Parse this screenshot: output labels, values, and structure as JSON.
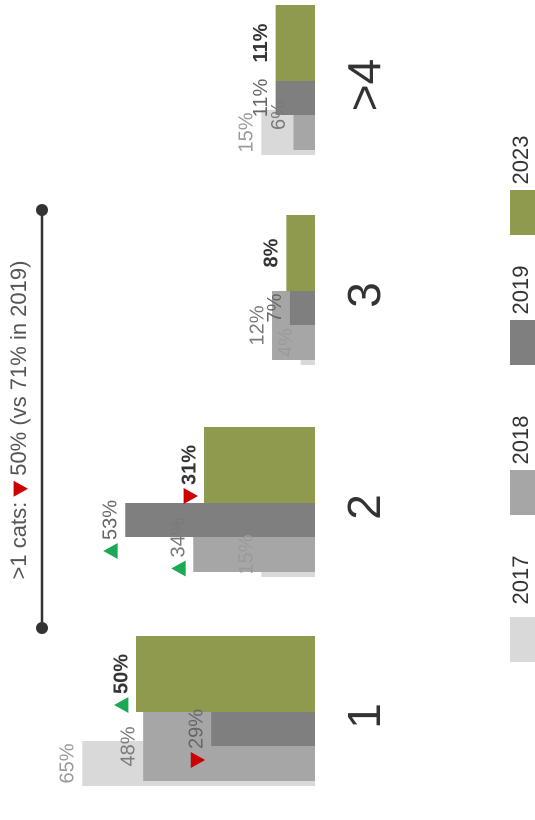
{
  "chart_data": {
    "type": "bar",
    "orientation": "rotated",
    "annotation": {
      "prefix": ">1 cats:",
      "trend": "down",
      "text": "50% (vs 71% in 2019)"
    },
    "categories": [
      "1",
      "2",
      "3",
      ">4"
    ],
    "series": [
      {
        "name": "2017",
        "color": "#d9d9d9",
        "label_color": "#9a9a9a",
        "values": [
          65,
          15,
          4,
          15
        ],
        "value_labels": [
          "65%",
          "15%",
          "4%",
          "15%"
        ],
        "trend": [
          null,
          null,
          null,
          null
        ]
      },
      {
        "name": "2018",
        "color": "#a6a6a6",
        "label_color": "#7a7a7a",
        "values": [
          48,
          34,
          12,
          6
        ],
        "value_labels": [
          "48%",
          "34%",
          "12%",
          "6%"
        ],
        "trend": [
          null,
          "up",
          null,
          null
        ]
      },
      {
        "name": "2019",
        "color": "#7f7f7f",
        "label_color": "#666666",
        "values": [
          29,
          53,
          7,
          11
        ],
        "value_labels": [
          "29%",
          "53%",
          "7%",
          "11%"
        ],
        "trend": [
          "down",
          "up",
          null,
          null
        ]
      },
      {
        "name": "2023",
        "color": "#8f9a4f",
        "label_color": "#333333",
        "bold": true,
        "values": [
          50,
          31,
          8,
          11
        ],
        "value_labels": [
          "50%",
          "31%",
          "8%",
          "11%"
        ],
        "trend": [
          "up",
          "down",
          null,
          null
        ]
      }
    ]
  }
}
